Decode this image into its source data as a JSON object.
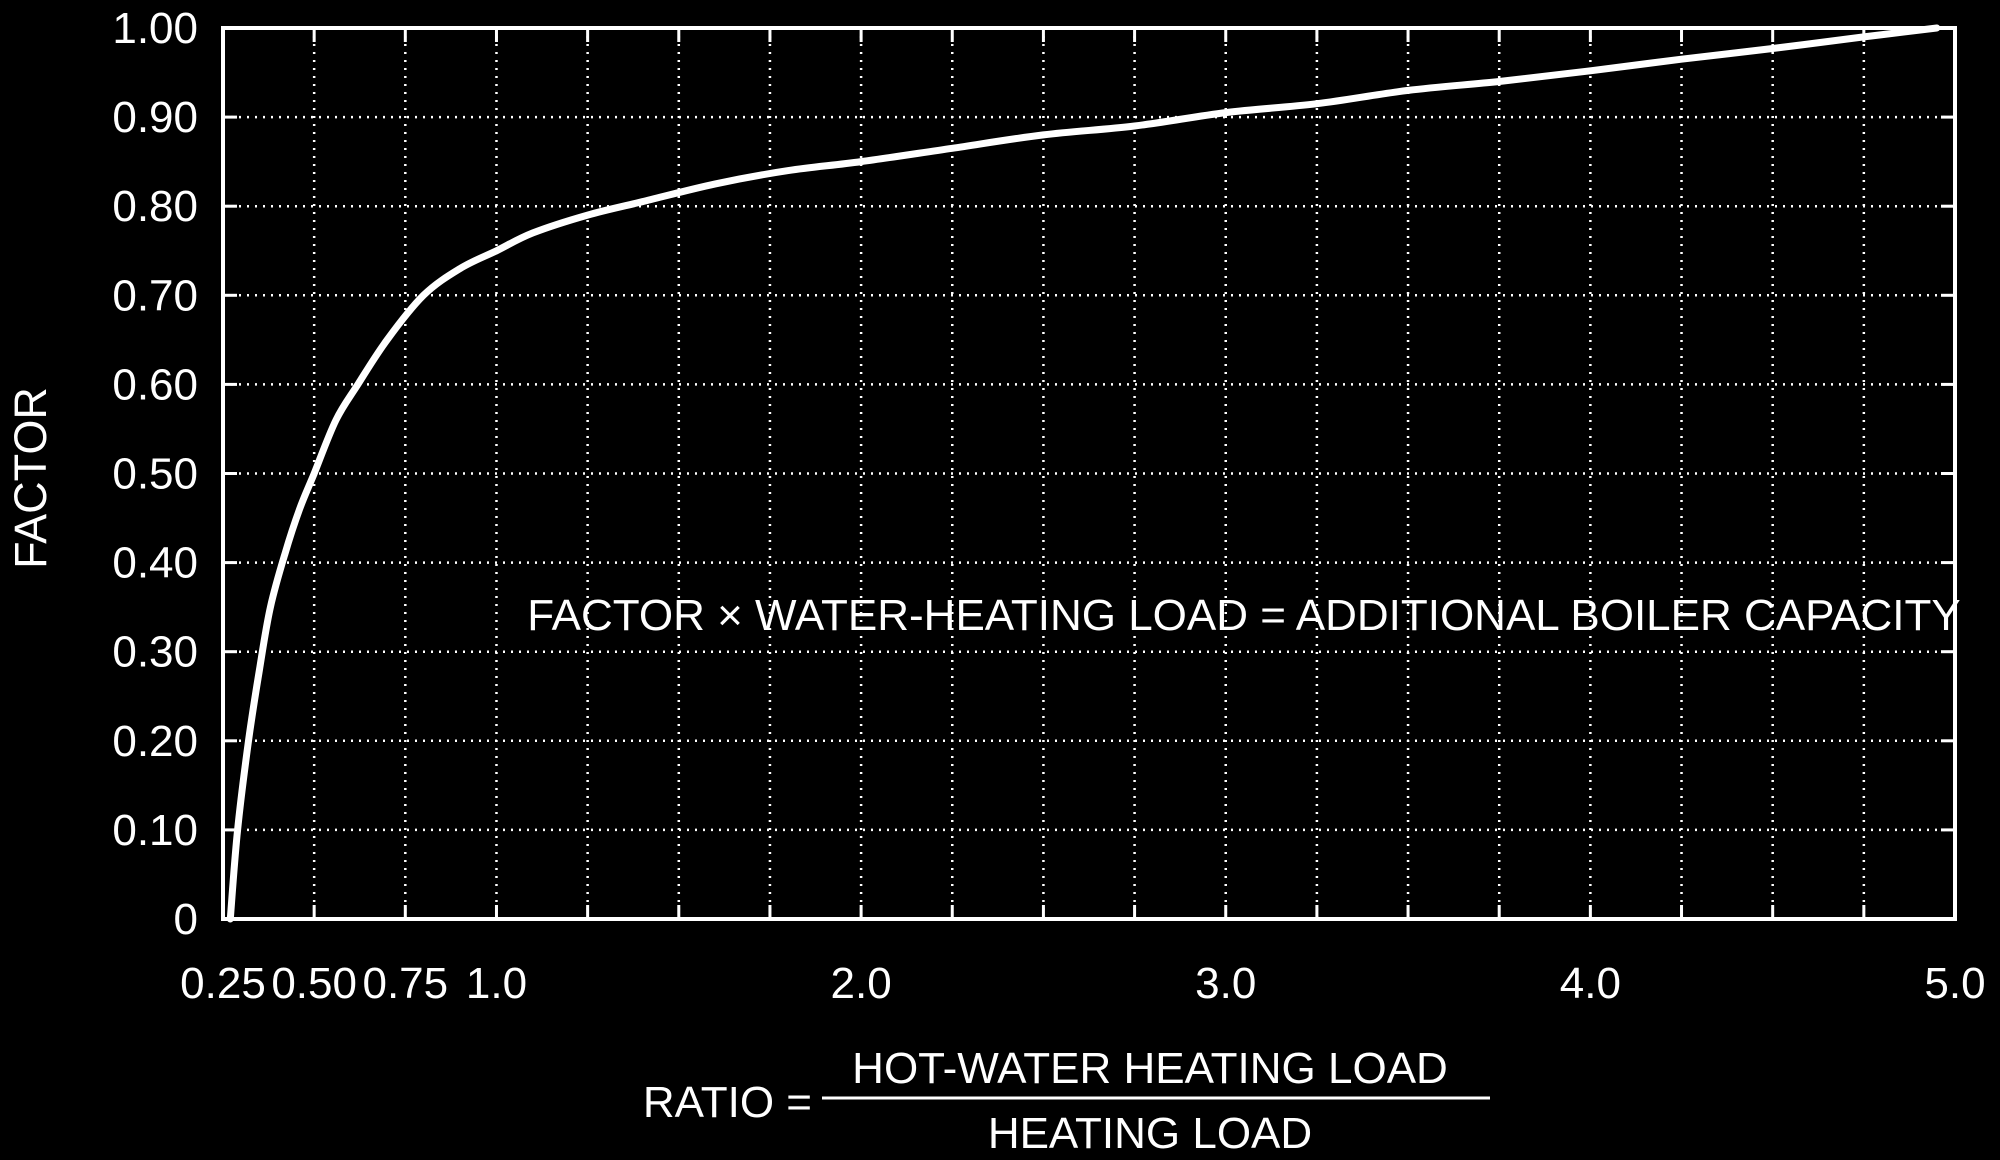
{
  "chart_data": {
    "type": "line",
    "title": "",
    "ylabel": "FACTOR",
    "xlabel": {
      "prefix": "RATIO =",
      "numerator": "HOT-WATER HEATING LOAD",
      "denominator": "HEATING LOAD"
    },
    "annotation": "FACTOR × WATER-HEATING LOAD = ADDITIONAL BOILER CAPACITY",
    "xlim": [
      0.25,
      5.0
    ],
    "ylim": [
      0,
      1.0
    ],
    "grid": true,
    "x_grid": [
      0.5,
      0.75,
      1.0,
      1.25,
      1.5,
      1.75,
      2.0,
      2.25,
      2.5,
      2.75,
      3.0,
      3.25,
      3.5,
      3.75,
      4.0,
      4.25,
      4.5,
      4.75
    ],
    "x_ticks": [
      {
        "value": 0.25,
        "label": "0.25"
      },
      {
        "value": 0.5,
        "label": "0.50"
      },
      {
        "value": 0.75,
        "label": "0.75"
      },
      {
        "value": 1.0,
        "label": "1.0"
      },
      {
        "value": 2.0,
        "label": "2.0"
      },
      {
        "value": 3.0,
        "label": "3.0"
      },
      {
        "value": 4.0,
        "label": "4.0"
      },
      {
        "value": 5.0,
        "label": "5.0"
      }
    ],
    "y_ticks": [
      {
        "value": 0,
        "label": "0"
      },
      {
        "value": 0.1,
        "label": "0.10"
      },
      {
        "value": 0.2,
        "label": "0.20"
      },
      {
        "value": 0.3,
        "label": "0.30"
      },
      {
        "value": 0.4,
        "label": "0.40"
      },
      {
        "value": 0.5,
        "label": "0.50"
      },
      {
        "value": 0.6,
        "label": "0.60"
      },
      {
        "value": 0.7,
        "label": "0.70"
      },
      {
        "value": 0.8,
        "label": "0.80"
      },
      {
        "value": 0.9,
        "label": "0.90"
      },
      {
        "value": 1.0,
        "label": "1.00"
      }
    ],
    "series": [
      {
        "x": [
          0.27,
          0.29,
          0.32,
          0.35,
          0.38,
          0.42,
          0.46,
          0.5,
          0.56,
          0.62,
          0.7,
          0.8,
          0.9,
          1.0,
          1.1,
          1.25,
          1.4,
          1.6,
          1.8,
          2.0,
          2.25,
          2.5,
          2.75,
          3.0,
          3.25,
          3.5,
          3.75,
          4.0,
          4.25,
          4.5,
          4.75,
          4.95
        ],
        "y": [
          0.0,
          0.1,
          0.2,
          0.28,
          0.35,
          0.41,
          0.46,
          0.5,
          0.56,
          0.6,
          0.65,
          0.7,
          0.73,
          0.75,
          0.77,
          0.79,
          0.805,
          0.825,
          0.84,
          0.85,
          0.865,
          0.88,
          0.89,
          0.905,
          0.915,
          0.93,
          0.94,
          0.952,
          0.965,
          0.977,
          0.99,
          1.0
        ]
      }
    ],
    "colors": {
      "background": "#000000",
      "foreground": "#ffffff"
    }
  }
}
